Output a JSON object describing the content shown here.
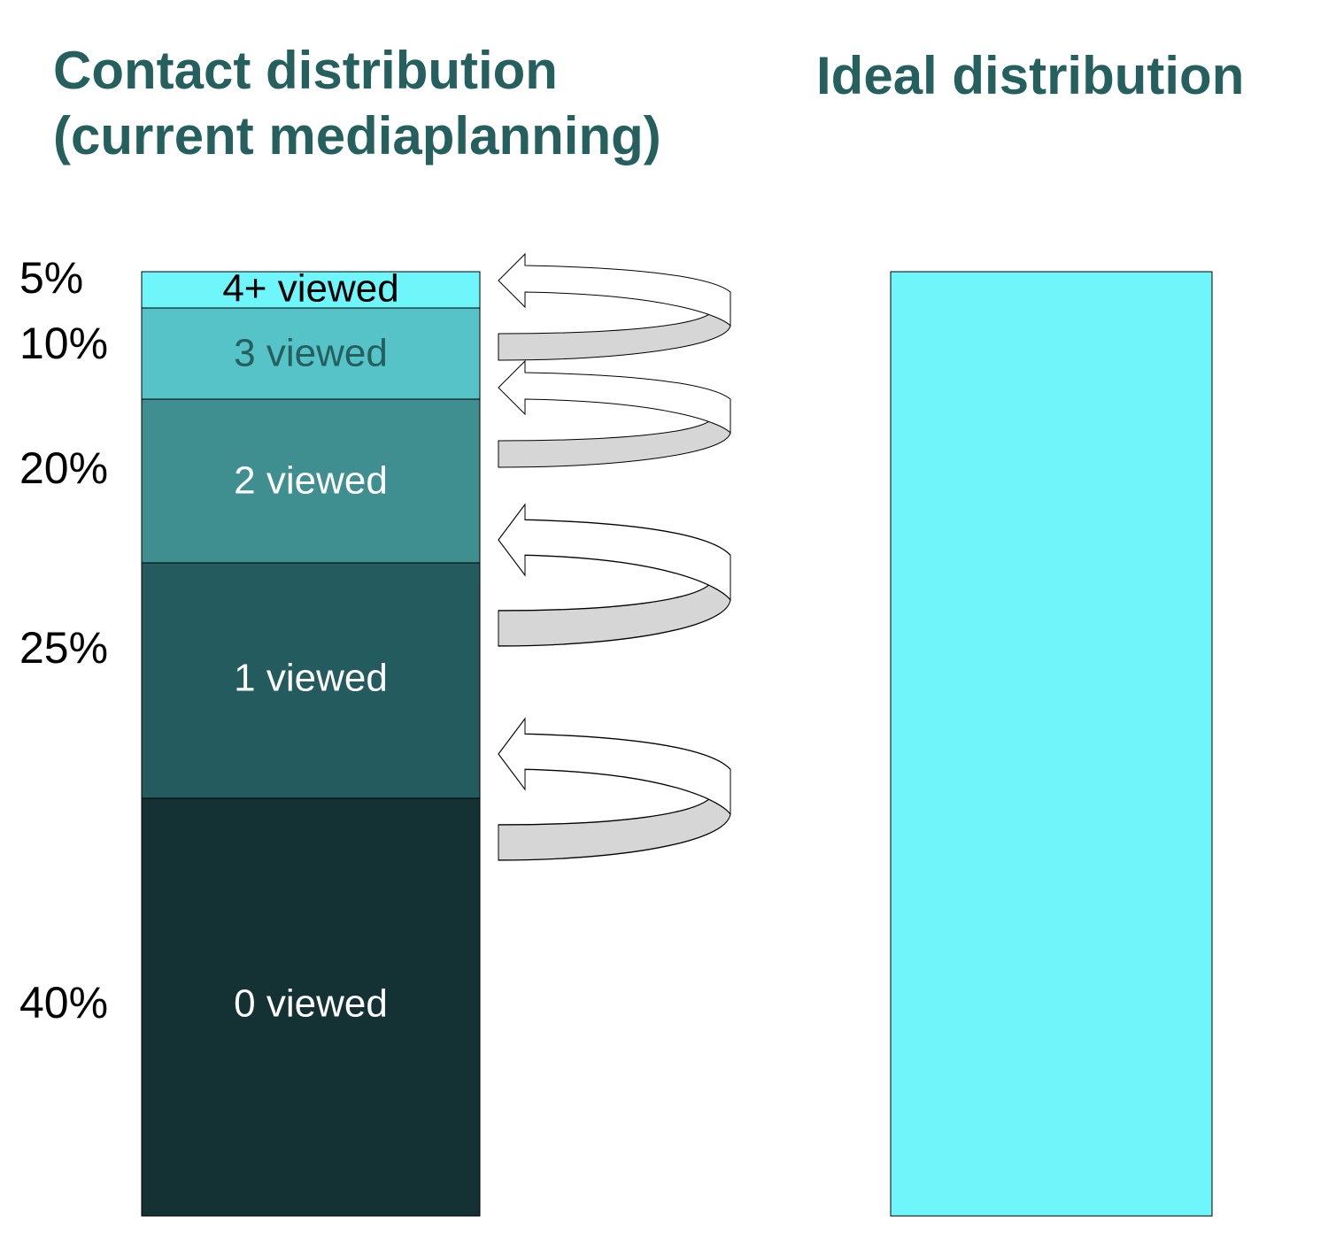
{
  "left_title": [
    "Contact distribution",
    "(current mediaplanning)"
  ],
  "right_title": "Ideal distribution",
  "segments": [
    {
      "label": "4+ viewed",
      "share": "5%"
    },
    {
      "label": "3 viewed",
      "share": "10%"
    },
    {
      "label": "2 viewed",
      "share": "20%"
    },
    {
      "label": "1 viewed",
      "share": "25%"
    },
    {
      "label": "0 viewed",
      "share": "40%"
    }
  ]
}
